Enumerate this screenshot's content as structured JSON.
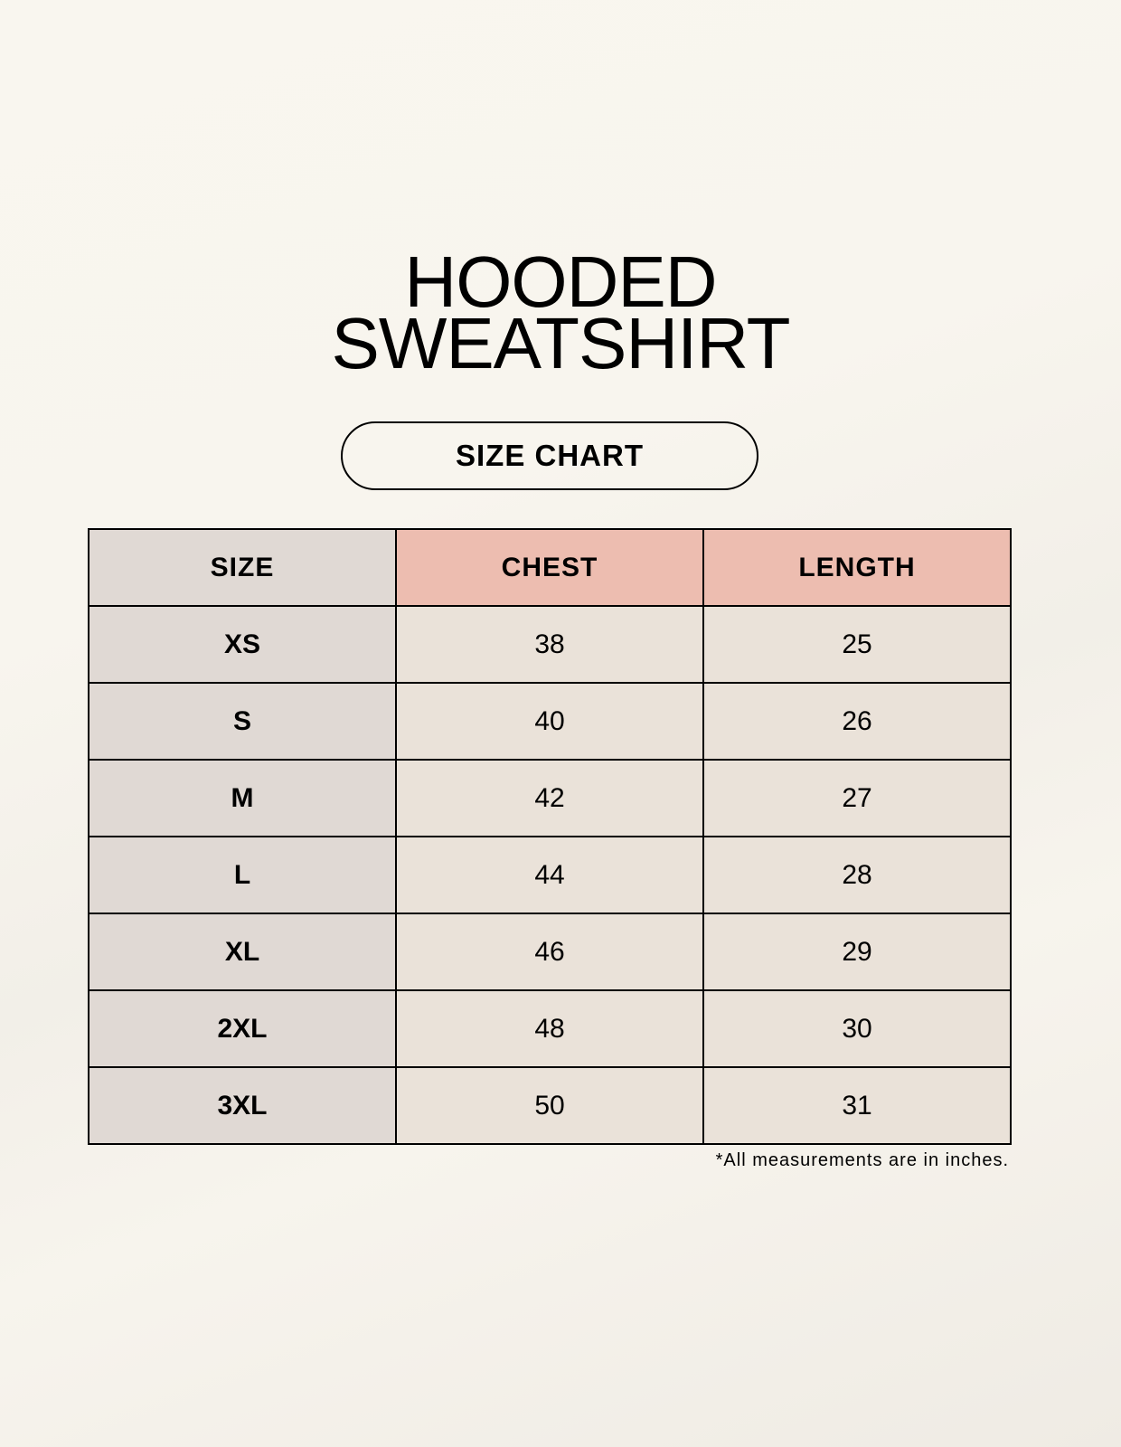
{
  "title": {
    "line1": "HOODED",
    "line2": "SWEATSHIRT"
  },
  "badge": "SIZE CHART",
  "table": {
    "headers": [
      "SIZE",
      "CHEST",
      "LENGTH"
    ],
    "rows": [
      [
        "XS",
        "38",
        "25"
      ],
      [
        "S",
        "40",
        "26"
      ],
      [
        "M",
        "42",
        "27"
      ],
      [
        "L",
        "44",
        "28"
      ],
      [
        "XL",
        "46",
        "29"
      ],
      [
        "2XL",
        "48",
        "30"
      ],
      [
        "3XL",
        "50",
        "31"
      ]
    ]
  },
  "footnote": "*All measurements are in inches.",
  "colors": {
    "size_column": "#e0d9d4",
    "header_accent": "#edbdb0",
    "cell": "#eae2d9"
  }
}
